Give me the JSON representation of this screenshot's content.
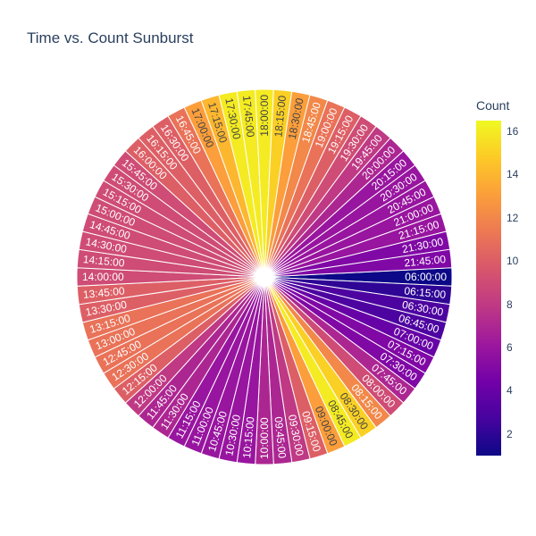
{
  "chart_data": {
    "type": "sunburst",
    "title": "Time vs. Count Sunburst",
    "colorbar": {
      "title": "Count",
      "range": [
        1,
        16.5
      ],
      "ticks": [
        2,
        4,
        6,
        8,
        10,
        12,
        14,
        16
      ],
      "colorscale": "plasma"
    },
    "segments": [
      {
        "label": "06:00:00",
        "value": 1
      },
      {
        "label": "06:15:00",
        "value": 2
      },
      {
        "label": "06:30:00",
        "value": 3
      },
      {
        "label": "06:45:00",
        "value": 3
      },
      {
        "label": "07:00:00",
        "value": 4
      },
      {
        "label": "07:15:00",
        "value": 5
      },
      {
        "label": "07:30:00",
        "value": 5
      },
      {
        "label": "07:45:00",
        "value": 7
      },
      {
        "label": "08:00:00",
        "value": 9
      },
      {
        "label": "08:15:00",
        "value": 12
      },
      {
        "label": "08:30:00",
        "value": 15
      },
      {
        "label": "08:45:00",
        "value": 16
      },
      {
        "label": "09:00:00",
        "value": 13
      },
      {
        "label": "09:15:00",
        "value": 10
      },
      {
        "label": "09:30:00",
        "value": 8
      },
      {
        "label": "09:45:00",
        "value": 7
      },
      {
        "label": "10:00:00",
        "value": 7
      },
      {
        "label": "10:15:00",
        "value": 6
      },
      {
        "label": "10:30:00",
        "value": 6
      },
      {
        "label": "10:45:00",
        "value": 6
      },
      {
        "label": "11:00:00",
        "value": 6
      },
      {
        "label": "11:15:00",
        "value": 6
      },
      {
        "label": "11:30:00",
        "value": 7
      },
      {
        "label": "11:45:00",
        "value": 7
      },
      {
        "label": "12:00:00",
        "value": 8
      },
      {
        "label": "12:15:00",
        "value": 10
      },
      {
        "label": "12:30:00",
        "value": 11
      },
      {
        "label": "12:45:00",
        "value": 11
      },
      {
        "label": "13:00:00",
        "value": 11
      },
      {
        "label": "13:15:00",
        "value": 11
      },
      {
        "label": "13:30:00",
        "value": 10
      },
      {
        "label": "13:45:00",
        "value": 10
      },
      {
        "label": "14:00:00",
        "value": 9
      },
      {
        "label": "14:15:00",
        "value": 9
      },
      {
        "label": "14:30:00",
        "value": 9
      },
      {
        "label": "14:45:00",
        "value": 9
      },
      {
        "label": "15:00:00",
        "value": 9
      },
      {
        "label": "15:15:00",
        "value": 9
      },
      {
        "label": "15:30:00",
        "value": 9
      },
      {
        "label": "15:45:00",
        "value": 9
      },
      {
        "label": "16:00:00",
        "value": 10
      },
      {
        "label": "16:15:00",
        "value": 10
      },
      {
        "label": "16:30:00",
        "value": 10
      },
      {
        "label": "16:45:00",
        "value": 11
      },
      {
        "label": "17:00:00",
        "value": 13
      },
      {
        "label": "17:15:00",
        "value": 14
      },
      {
        "label": "17:30:00",
        "value": 16
      },
      {
        "label": "17:45:00",
        "value": 16
      },
      {
        "label": "18:00:00",
        "value": 16
      },
      {
        "label": "18:15:00",
        "value": 15
      },
      {
        "label": "18:30:00",
        "value": 13
      },
      {
        "label": "18:45:00",
        "value": 12
      },
      {
        "label": "19:00:00",
        "value": 11
      },
      {
        "label": "19:15:00",
        "value": 10
      },
      {
        "label": "19:30:00",
        "value": 9
      },
      {
        "label": "19:45:00",
        "value": 8
      },
      {
        "label": "20:00:00",
        "value": 7
      },
      {
        "label": "20:15:00",
        "value": 6
      },
      {
        "label": "20:30:00",
        "value": 6
      },
      {
        "label": "20:45:00",
        "value": 6
      },
      {
        "label": "21:00:00",
        "value": 6
      },
      {
        "label": "21:15:00",
        "value": 6
      },
      {
        "label": "21:30:00",
        "value": 5
      },
      {
        "label": "21:45:00",
        "value": 5
      }
    ]
  }
}
